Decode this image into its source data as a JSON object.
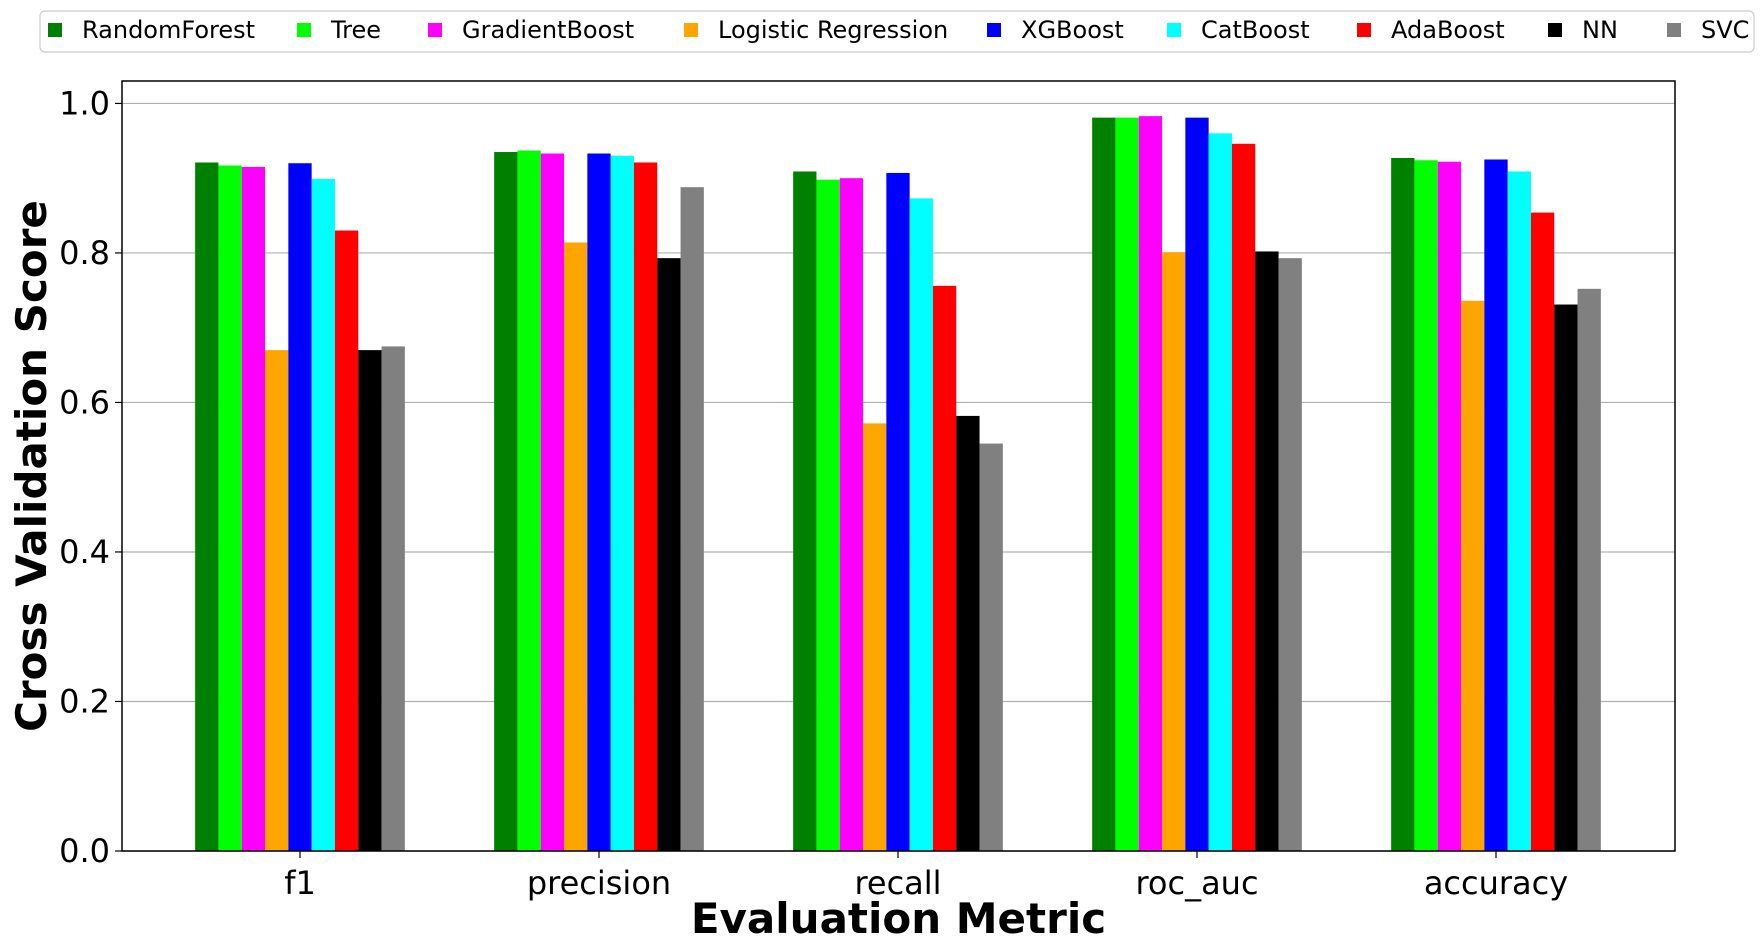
{
  "chart_data": {
    "type": "bar",
    "categories": [
      "f1",
      "precision",
      "recall",
      "roc_auc",
      "accuracy"
    ],
    "series": [
      {
        "name": "RandomForest",
        "color": "#008000",
        "values": [
          0.921,
          0.935,
          0.909,
          0.981,
          0.927
        ]
      },
      {
        "name": "Tree",
        "color": "#00ff00",
        "values": [
          0.917,
          0.937,
          0.898,
          0.981,
          0.924
        ]
      },
      {
        "name": "GradientBoost",
        "color": "#ff00ff",
        "values": [
          0.915,
          0.933,
          0.9,
          0.983,
          0.922
        ]
      },
      {
        "name": "Logistic Regression",
        "color": "#ffa500",
        "values": [
          0.67,
          0.814,
          0.572,
          0.801,
          0.736
        ]
      },
      {
        "name": "XGBoost",
        "color": "#0000ff",
        "values": [
          0.92,
          0.933,
          0.907,
          0.981,
          0.925
        ]
      },
      {
        "name": "CatBoost",
        "color": "#00ffff",
        "values": [
          0.899,
          0.93,
          0.873,
          0.96,
          0.909
        ]
      },
      {
        "name": "AdaBoost",
        "color": "#ff0000",
        "values": [
          0.83,
          0.921,
          0.756,
          0.946,
          0.854
        ]
      },
      {
        "name": "NN",
        "color": "#000000",
        "values": [
          0.67,
          0.793,
          0.582,
          0.802,
          0.731
        ]
      },
      {
        "name": "SVC",
        "color": "#808080",
        "values": [
          0.675,
          0.888,
          0.545,
          0.793,
          0.752
        ]
      }
    ],
    "title": "",
    "xlabel": "Evaluation Metric",
    "ylabel": "Cross Validation Score",
    "ylim": [
      0,
      1.03
    ],
    "yticks": [
      "0.0",
      "0.2",
      "0.4",
      "0.6",
      "0.8",
      "1.0"
    ],
    "grid": "horizontal",
    "legend_position": "top"
  }
}
